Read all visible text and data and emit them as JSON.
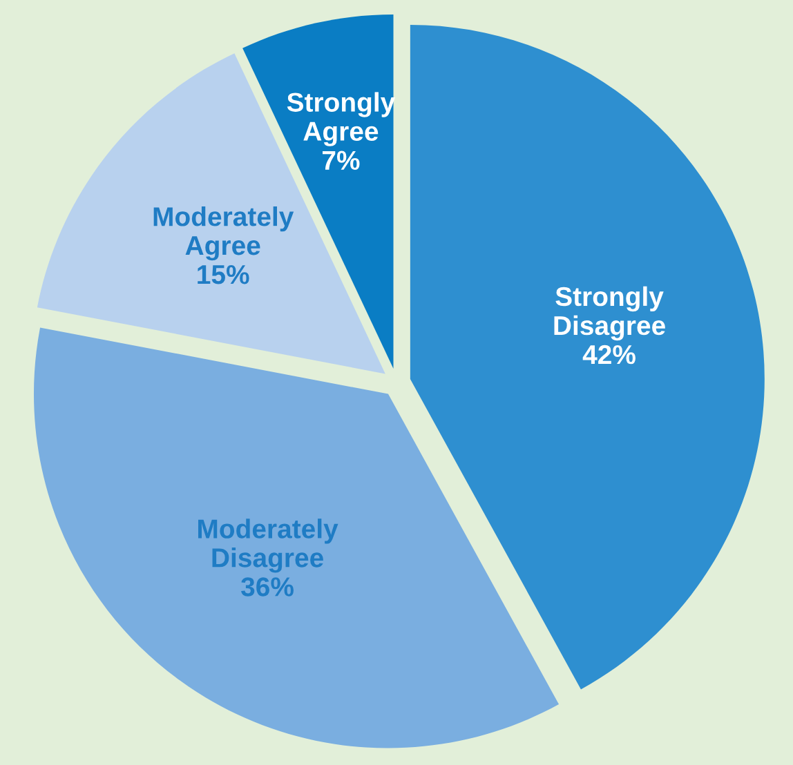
{
  "chart_data": {
    "type": "pie",
    "categories": [
      "Strongly Disagree",
      "Moderately Disagree",
      "Moderately Agree",
      "Strongly Agree"
    ],
    "values": [
      42,
      36,
      15,
      7
    ],
    "colors": [
      "#2e8fd0",
      "#7aaee0",
      "#b8d1ee",
      "#0a7dc4"
    ],
    "value_labels": [
      "42%",
      "36%",
      "15%",
      "7%"
    ]
  }
}
